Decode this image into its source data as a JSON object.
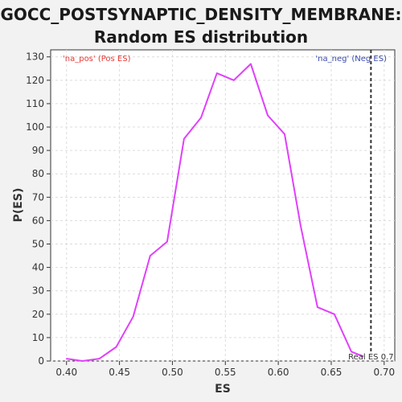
{
  "chart_data": {
    "type": "line",
    "title_line1": "GOCC_POSTSYNAPTIC_DENSITY_MEMBRANE:",
    "title_line2": "Random ES distribution",
    "xlabel": "ES",
    "ylabel": "P(ES)",
    "xlim": [
      0.385,
      0.71
    ],
    "ylim": [
      0,
      133
    ],
    "xticks": [
      0.4,
      0.45,
      0.5,
      0.55,
      0.6,
      0.65,
      0.7
    ],
    "xtick_labels": [
      "0.40",
      "0.45",
      "0.50",
      "0.55",
      "0.60",
      "0.65",
      "0.70"
    ],
    "yticks": [
      0,
      10,
      20,
      30,
      40,
      50,
      60,
      70,
      80,
      90,
      100,
      110,
      120,
      130
    ],
    "series": [
      {
        "color": "#e040fb",
        "x": [
          0.4,
          0.415,
          0.431,
          0.447,
          0.463,
          0.479,
          0.495,
          0.511,
          0.527,
          0.542,
          0.558,
          0.574,
          0.59,
          0.606,
          0.621,
          0.637,
          0.653,
          0.669,
          0.68
        ],
        "y": [
          1,
          0,
          1,
          6,
          19,
          45,
          51,
          95,
          104,
          123,
          120,
          127,
          105,
          97,
          58,
          23,
          20,
          4,
          2
        ]
      }
    ],
    "real_es": 0.6875,
    "real_es_label": "Real ES 0.7",
    "pos_label": "'na_pos' (Pos ES)",
    "neg_label": "'na_neg' (Neg ES)",
    "pos_color": "#e53935",
    "neg_color": "#3949ab",
    "grid": true
  }
}
